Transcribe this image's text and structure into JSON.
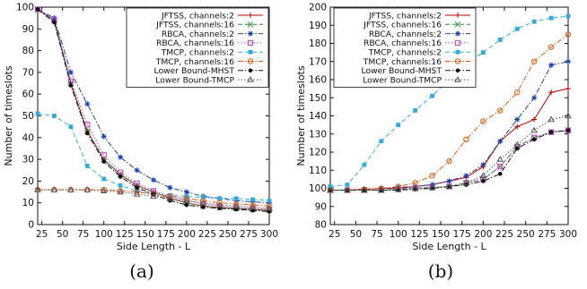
{
  "captions": [
    "(a)",
    "(b)"
  ],
  "chart_data": [
    {
      "type": "line",
      "xlabel": "Side Length - L",
      "ylabel": "Number of timeslots",
      "xlim": [
        20,
        300
      ],
      "ylim": [
        0,
        100
      ],
      "xticks": [
        25,
        50,
        75,
        100,
        125,
        150,
        175,
        200,
        225,
        250,
        275,
        300
      ],
      "yticks": [
        0,
        10,
        20,
        30,
        40,
        50,
        60,
        70,
        80,
        90,
        100
      ],
      "grid": false,
      "legend_position": "top-right",
      "x": [
        20,
        40,
        60,
        80,
        100,
        120,
        140,
        160,
        180,
        200,
        220,
        240,
        260,
        280,
        300
      ],
      "series": [
        {
          "name": "JFTSS, channels:2",
          "color": "#c00000",
          "marker": "plus",
          "dash": "solid",
          "values": [
            99,
            94,
            65,
            43,
            30,
            23,
            18,
            15,
            12,
            10,
            8.5,
            7.8,
            7.4,
            7,
            6.5
          ]
        },
        {
          "name": "JFTSS, channels:16",
          "color": "#2e8b3a",
          "marker": "x",
          "dash": "dash",
          "values": [
            99,
            94,
            65,
            43,
            30,
            23,
            18,
            15,
            12,
            10,
            8.5,
            7.8,
            7.4,
            7,
            6.5
          ]
        },
        {
          "name": "RBCA, channels:2",
          "color": "#1a3fb0",
          "marker": "star",
          "dash": "dashdot",
          "values": [
            99,
            95,
            70,
            55.5,
            40.5,
            31,
            25,
            20.5,
            17,
            15,
            13,
            12,
            11,
            10.5,
            10
          ]
        },
        {
          "name": "RBCA, channels:16",
          "color": "#c040c0",
          "marker": "square",
          "dash": "dot",
          "values": [
            99,
            94,
            66,
            46,
            32,
            24,
            19,
            15.5,
            13,
            11,
            9.5,
            8.5,
            8,
            7.5,
            7
          ]
        },
        {
          "name": "TMCP, channels:2",
          "color": "#33aadd",
          "marker": "filledsquare",
          "dash": "dash",
          "values": [
            51,
            50,
            45,
            27,
            21,
            18,
            15.5,
            14,
            13.5,
            13,
            12.5,
            12,
            12,
            11.5,
            11
          ]
        },
        {
          "name": "TMCP, channels:16",
          "color": "#e05a10",
          "marker": "circle",
          "dash": "dashdot",
          "values": [
            16,
            16,
            16,
            16,
            16,
            15.5,
            15,
            14,
            13,
            12,
            11,
            10,
            9.5,
            9,
            8.5
          ]
        },
        {
          "name": "Lower Bound-MHST",
          "color": "#111111",
          "marker": "dot",
          "dash": "dashdot",
          "values": [
            99,
            93,
            64,
            42,
            29,
            22,
            17,
            14,
            11,
            9,
            8,
            7.5,
            7,
            6.5,
            6
          ]
        },
        {
          "name": "Lower Bound-TMCP",
          "color": "#555555",
          "marker": "triangle",
          "dash": "dot",
          "values": [
            16,
            16,
            16,
            16,
            15.5,
            15,
            14,
            13,
            12,
            11,
            10,
            9,
            8.5,
            8,
            7.5
          ]
        }
      ]
    },
    {
      "type": "line",
      "xlabel": "Side Length - L",
      "ylabel": "Number of timeslots",
      "xlim": [
        20,
        300
      ],
      "ylim": [
        80,
        200
      ],
      "xticks": [
        25,
        50,
        75,
        100,
        125,
        150,
        175,
        200,
        225,
        250,
        275,
        300
      ],
      "yticks": [
        80,
        90,
        100,
        110,
        120,
        130,
        140,
        150,
        160,
        170,
        180,
        190,
        200
      ],
      "grid": false,
      "legend_position": "top-left",
      "x": [
        20,
        40,
        60,
        80,
        100,
        120,
        140,
        160,
        180,
        200,
        220,
        240,
        260,
        280,
        300
      ],
      "series": [
        {
          "name": "JFTSS, channels:2",
          "color": "#c00000",
          "marker": "plus",
          "dash": "solid",
          "values": [
            99,
            99,
            99.5,
            100,
            100,
            101,
            102,
            104,
            106,
            112,
            126,
            134,
            138,
            153,
            155
          ]
        },
        {
          "name": "JFTSS, channels:16",
          "color": "#2e8b3a",
          "marker": "x",
          "dash": "dash",
          "values": [
            99,
            99,
            99,
            99,
            99.5,
            100,
            100.5,
            101,
            103,
            105,
            112,
            123,
            128,
            131,
            132
          ]
        },
        {
          "name": "RBCA, channels:2",
          "color": "#1a3fb0",
          "marker": "star",
          "dash": "dashdot",
          "values": [
            99,
            99,
            99.5,
            100,
            100.5,
            101,
            102,
            104,
            107,
            113,
            126,
            138,
            150,
            168,
            170
          ]
        },
        {
          "name": "RBCA, channels:16",
          "color": "#c040c0",
          "marker": "square",
          "dash": "dot",
          "values": [
            99,
            99,
            99,
            99,
            99.5,
            100,
            100.5,
            101,
            103,
            105,
            112,
            123,
            128,
            131,
            132
          ]
        },
        {
          "name": "TMCP, channels:2",
          "color": "#33aadd",
          "marker": "filledsquare",
          "dash": "dash",
          "values": [
            101,
            102,
            113,
            126,
            135,
            143,
            151,
            160,
            169,
            175,
            182,
            188,
            192,
            194,
            195
          ]
        },
        {
          "name": "TMCP, channels:16",
          "color": "#e05a10",
          "marker": "circle",
          "dash": "dashdot",
          "values": [
            99,
            99,
            99.5,
            100,
            101,
            103,
            107,
            115,
            127,
            137,
            143,
            153,
            170,
            178,
            185
          ]
        },
        {
          "name": "Lower Bound-MHST",
          "color": "#111111",
          "marker": "dot",
          "dash": "dashdot",
          "values": [
            99,
            99,
            99,
            99,
            99,
            99.5,
            100,
            101,
            102,
            104,
            108,
            122,
            127,
            131,
            132
          ]
        },
        {
          "name": "Lower Bound-TMCP",
          "color": "#555555",
          "marker": "triangle",
          "dash": "dot",
          "values": [
            99,
            99,
            99,
            99,
            99.5,
            100,
            100.5,
            101,
            103,
            107,
            116,
            124,
            132,
            138,
            140
          ]
        }
      ]
    }
  ]
}
